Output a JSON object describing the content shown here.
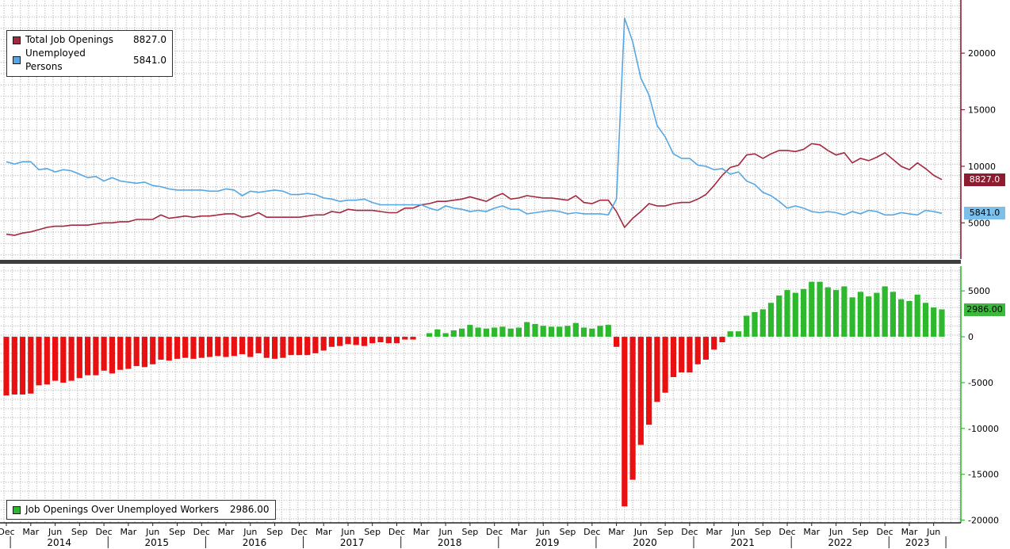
{
  "colors": {
    "openings_line": "#a3293d",
    "unemployed_line": "#55a7e3",
    "positive_bar": "#2eb82e",
    "negative_bar": "#e81010",
    "openings_badge_bg": "#8e1c30",
    "unemployed_badge_bg": "#7cc0ea",
    "spread_badge_bg": "#3cb83c",
    "top_axis_spine": "#8e1c30",
    "bottom_axis_spine": "#2eb82e",
    "x_axis_line": "#222222"
  },
  "legend_top": {
    "items": [
      {
        "label": "Total Job Openings",
        "value": "8827.0"
      },
      {
        "label": "Unemployed Persons",
        "value": "5841.0"
      }
    ]
  },
  "legend_bottom": {
    "label": "Job Openings Over Unemployed Workers",
    "value": "2986.00"
  },
  "badges": {
    "openings": "8827.0",
    "unemployed": "5841.0",
    "spread": "2986.00"
  },
  "x_axis": {
    "month_labels": [
      "Dec",
      "Mar",
      "Jun",
      "Sep",
      "Dec",
      "Mar",
      "Jun",
      "Sep",
      "Dec",
      "Mar",
      "Jun",
      "Sep",
      "Dec",
      "Mar",
      "Jun",
      "Sep",
      "Dec",
      "Mar",
      "Jun",
      "Sep",
      "Dec",
      "Mar",
      "Jun",
      "Sep",
      "Dec",
      "Mar",
      "Jun",
      "Sep",
      "Dec",
      "Mar",
      "Jun",
      "Sep",
      "Dec",
      "Mar",
      "Jun",
      "Sep",
      "Dec",
      "Mar",
      "Jun"
    ],
    "year_labels": [
      "2014",
      "2015",
      "2016",
      "2017",
      "2018",
      "2019",
      "2020",
      "2021",
      "2022",
      "2023"
    ]
  },
  "chart_data": [
    {
      "type": "line",
      "x_start": "2013-12",
      "x_end": "2023-07",
      "frequency": "monthly",
      "ylim": [
        1800,
        24700
      ],
      "yticks": [
        5000,
        10000,
        15000,
        20000
      ],
      "legend_position": "top-left",
      "series": [
        {
          "name": "Total Job Openings",
          "color": "#a3293d",
          "last_value": 8827.0,
          "values": [
            4000,
            3900,
            4100,
            4200,
            4400,
            4600,
            4700,
            4700,
            4800,
            4800,
            4800,
            4900,
            5000,
            5000,
            5100,
            5100,
            5300,
            5300,
            5300,
            5700,
            5400,
            5500,
            5600,
            5500,
            5600,
            5600,
            5700,
            5800,
            5800,
            5500,
            5600,
            5900,
            5500,
            5500,
            5500,
            5500,
            5500,
            5600,
            5700,
            5700,
            6000,
            5900,
            6200,
            6100,
            6100,
            6100,
            6000,
            5900,
            5900,
            6300,
            6300,
            6600,
            6700,
            6900,
            6900,
            7000,
            7100,
            7300,
            7100,
            6900,
            7300,
            7600,
            7100,
            7200,
            7400,
            7300,
            7200,
            7200,
            7100,
            7000,
            7400,
            6800,
            6700,
            7000,
            7000,
            6000,
            4600,
            5400,
            6000,
            6700,
            6500,
            6500,
            6700,
            6800,
            6800,
            7100,
            7500,
            8300,
            9200,
            9900,
            10100,
            11000,
            11100,
            10700,
            11100,
            11400,
            11400,
            11300,
            11500,
            12000,
            11900,
            11400,
            11000,
            11200,
            10300,
            10700,
            10500,
            10800,
            11200,
            10600,
            10000,
            9700,
            10300,
            9800,
            9200,
            8827
          ]
        },
        {
          "name": "Unemployed Persons",
          "color": "#55a7e3",
          "last_value": 5841.0,
          "values": [
            10400,
            10200,
            10400,
            10400,
            9700,
            9800,
            9500,
            9700,
            9600,
            9300,
            9000,
            9100,
            8700,
            9000,
            8700,
            8600,
            8500,
            8600,
            8300,
            8200,
            8000,
            7900,
            7900,
            7900,
            7900,
            7800,
            7800,
            8000,
            7900,
            7400,
            7800,
            7700,
            7800,
            7900,
            7800,
            7500,
            7500,
            7600,
            7500,
            7200,
            7100,
            6900,
            7000,
            7000,
            7100,
            6800,
            6600,
            6600,
            6600,
            6600,
            6600,
            6600,
            6300,
            6100,
            6500,
            6300,
            6200,
            6000,
            6100,
            6000,
            6300,
            6500,
            6200,
            6200,
            5800,
            5900,
            6000,
            6100,
            6000,
            5800,
            5900,
            5800,
            5800,
            5800,
            5700,
            7100,
            23100,
            21000,
            17800,
            16300,
            13600,
            12600,
            11100,
            10700,
            10700,
            10100,
            10000,
            9700,
            9800,
            9300,
            9500,
            8700,
            8400,
            7700,
            7400,
            6900,
            6300,
            6500,
            6300,
            6000,
            5900,
            6000,
            5900,
            5700,
            6000,
            5800,
            6100,
            6000,
            5700,
            5700,
            5900,
            5800,
            5700,
            6100,
            6000,
            5841
          ]
        }
      ]
    },
    {
      "type": "bar",
      "name": "Job Openings Over Unemployed Workers",
      "x_start": "2013-12",
      "x_end": "2023-07",
      "frequency": "monthly",
      "ylim": [
        -20300,
        7700
      ],
      "yticks": [
        5000,
        0,
        -5000,
        -10000,
        -15000,
        -20000
      ],
      "positive_color": "#2eb82e",
      "negative_color": "#e81010",
      "last_value": 2986.0,
      "values": [
        -6400,
        -6300,
        -6300,
        -6200,
        -5300,
        -5200,
        -4800,
        -5000,
        -4800,
        -4500,
        -4200,
        -4200,
        -3700,
        -4000,
        -3600,
        -3500,
        -3200,
        -3300,
        -3000,
        -2500,
        -2600,
        -2400,
        -2300,
        -2400,
        -2300,
        -2200,
        -2100,
        -2200,
        -2100,
        -1900,
        -2200,
        -1800,
        -2300,
        -2400,
        -2300,
        -2000,
        -2000,
        -2000,
        -1800,
        -1500,
        -1100,
        -1000,
        -800,
        -900,
        -1000,
        -700,
        -600,
        -700,
        -700,
        -300,
        -300,
        0,
        400,
        800,
        400,
        700,
        900,
        1300,
        1000,
        900,
        1000,
        1100,
        900,
        1000,
        1600,
        1400,
        1200,
        1100,
        1100,
        1200,
        1500,
        1000,
        900,
        1200,
        1300,
        -1100,
        -18500,
        -15600,
        -11800,
        -9600,
        -7100,
        -6100,
        -4400,
        -3900,
        -3900,
        -3000,
        -2500,
        -1400,
        -600,
        600,
        600,
        2300,
        2700,
        3000,
        3700,
        4500,
        5100,
        4800,
        5200,
        6000,
        6000,
        5400,
        5100,
        5500,
        4300,
        4900,
        4400,
        4800,
        5500,
        4900,
        4100,
        3900,
        4600,
        3700,
        3200,
        2986
      ]
    }
  ]
}
